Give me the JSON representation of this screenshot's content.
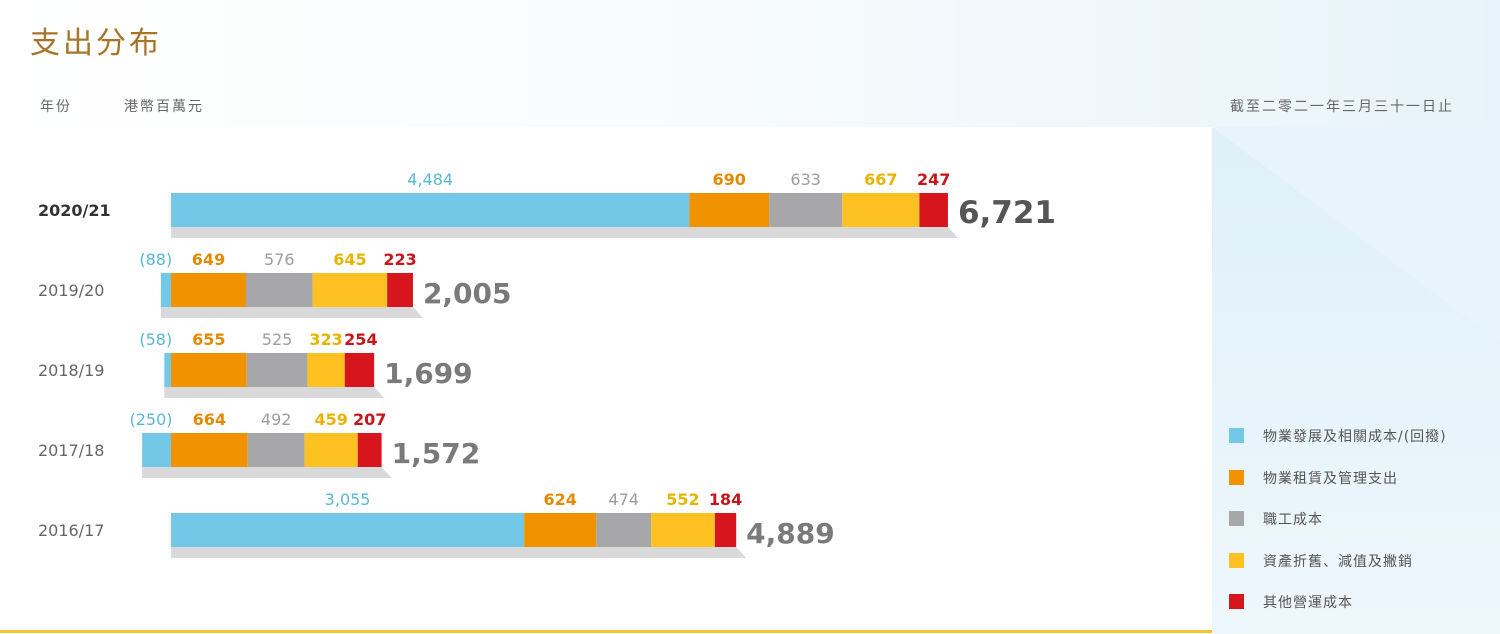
{
  "title": "支出分布",
  "header": {
    "year_label": "年份",
    "unit_label": "港幣百萬元",
    "date_note": "截至二零二一年三月三十一日止"
  },
  "colors": {
    "title": "#a8742a",
    "property": "#72c8e6",
    "leasing": "#f19300",
    "staff": "#a7a6a8",
    "depreciation": "#fdc221",
    "other": "#d7151c",
    "accent_line": "#f4c430"
  },
  "chart_data": {
    "type": "bar",
    "orientation": "horizontal",
    "stacked": true,
    "categories": [
      "2020/21",
      "2019/20",
      "2018/19",
      "2017/18",
      "2016/17"
    ],
    "series": [
      {
        "name": "物業發展及相關成本/(回撥)",
        "values": [
          4484,
          -88,
          -58,
          -250,
          3055
        ],
        "labels": [
          "4,484",
          "(88)",
          "(58)",
          "(250)",
          "3,055"
        ],
        "color": "#72c8e6"
      },
      {
        "name": "物業租賃及管理支出",
        "values": [
          690,
          649,
          655,
          664,
          624
        ],
        "labels": [
          "690",
          "649",
          "655",
          "664",
          "624"
        ],
        "color": "#f19300"
      },
      {
        "name": "職工成本",
        "values": [
          633,
          576,
          525,
          492,
          474
        ],
        "labels": [
          "633",
          "576",
          "525",
          "492",
          "474"
        ],
        "color": "#a7a6a8"
      },
      {
        "name": "資產折舊、減值及撇銷",
        "values": [
          667,
          645,
          323,
          459,
          552
        ],
        "labels": [
          "667",
          "645",
          "323",
          "459",
          "552"
        ],
        "color": "#fdc221"
      },
      {
        "name": "其他營運成本",
        "values": [
          247,
          223,
          254,
          207,
          184
        ],
        "labels": [
          "247",
          "223",
          "254",
          "207",
          "184"
        ],
        "color": "#d7151c"
      }
    ],
    "totals": [
      6721,
      2005,
      1699,
      1572,
      4889
    ],
    "total_labels": [
      "6,721",
      "2,005",
      "1,699",
      "1,572",
      "4,889"
    ],
    "legend_position": "bottom-right",
    "grid": false
  }
}
